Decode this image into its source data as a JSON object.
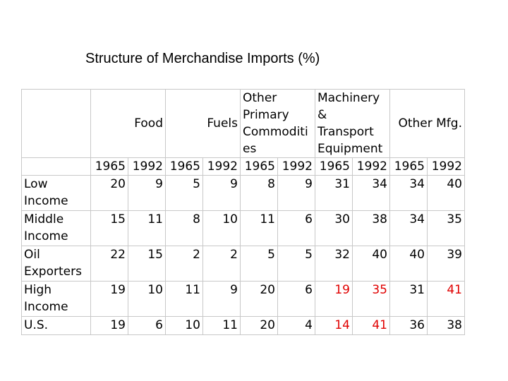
{
  "title": "Structure of Merchandise Imports (%)",
  "table": {
    "categories": [
      {
        "label": "Food",
        "align": "right"
      },
      {
        "label": "Fuels",
        "align": "right"
      },
      {
        "label": "Other\nPrimary\nCommoditi\nes",
        "align": "left"
      },
      {
        "label": "Machinery\n&\nTransport\nEquipment",
        "align": "left"
      },
      {
        "label": "Other Mfg.",
        "align": "right"
      }
    ],
    "years": [
      "1965",
      "1992",
      "1965",
      "1992",
      "1965",
      "1992",
      "1965",
      "1992",
      "1965",
      "1992"
    ],
    "rows": [
      {
        "label": "Low\nIncome",
        "values": [
          "20",
          "9",
          "5",
          "9",
          "8",
          "9",
          "31",
          "34",
          "34",
          "40"
        ],
        "highlight_cols": []
      },
      {
        "label": "Middle\nIncome",
        "values": [
          "15",
          "11",
          "8",
          "10",
          "11",
          "6",
          "30",
          "38",
          "34",
          "35"
        ],
        "highlight_cols": []
      },
      {
        "label": "Oil\nExporters",
        "values": [
          "22",
          "15",
          "2",
          "2",
          "5",
          "5",
          "32",
          "40",
          "40",
          "39"
        ],
        "highlight_cols": []
      },
      {
        "label": "High\nIncome",
        "values": [
          "19",
          "10",
          "11",
          "9",
          "20",
          "6",
          "19",
          "35",
          "31",
          "41"
        ],
        "highlight_cols": [
          6,
          7,
          9
        ]
      },
      {
        "label": "U.S.",
        "values": [
          "19",
          "6",
          "10",
          "11",
          "20",
          "4",
          "14",
          "41",
          "36",
          "38"
        ],
        "highlight_cols": [
          6,
          7
        ]
      }
    ],
    "highlight_color": "#e00000"
  }
}
